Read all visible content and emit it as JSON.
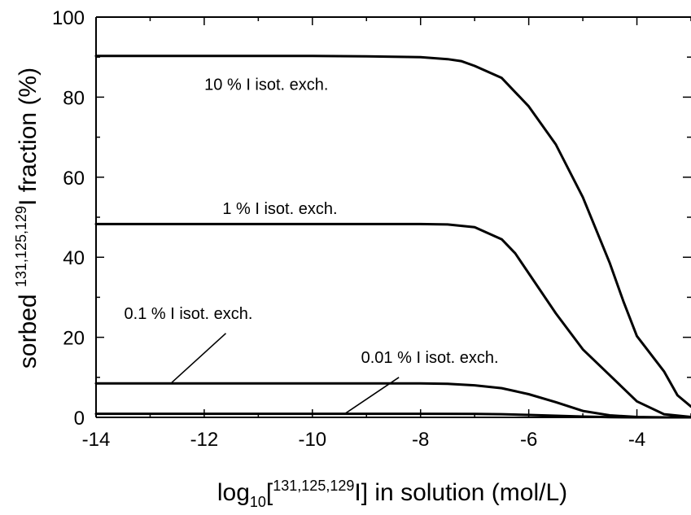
{
  "chart_data": {
    "type": "line",
    "xlabel_parts": {
      "main": "log",
      "sub": "10",
      "open": "[",
      "sup": "131,125,129",
      "rest": "I] in solution (mol/L)"
    },
    "ylabel_parts": {
      "pre": "sorbed ",
      "sup": "131,125,129",
      "rest": "I fraction (%)"
    },
    "xlim": [
      -14,
      -3
    ],
    "ylim": [
      0,
      100
    ],
    "x_ticks": [
      -14,
      -12,
      -10,
      -8,
      -6,
      -4
    ],
    "y_ticks": [
      0,
      20,
      40,
      60,
      80,
      100
    ],
    "grid": false,
    "series": [
      {
        "key": "s10",
        "label": "10 % I isot. exch.",
        "x": [
          -14,
          -12,
          -10,
          -9,
          -8.5,
          -8,
          -7.5,
          -7.25,
          -7,
          -6.5,
          -6,
          -5.5,
          -5,
          -4.5,
          -4.25,
          -4,
          -3.5,
          -3.25,
          -3
        ],
        "y": [
          90.3,
          90.3,
          90.3,
          90.2,
          90.1,
          90.0,
          89.5,
          89.0,
          87.8,
          84.8,
          77.7,
          68.2,
          55.0,
          38.5,
          29.0,
          20.3,
          11.5,
          5.5,
          2.7
        ]
      },
      {
        "key": "s1",
        "label": "1 % I isot. exch.",
        "x": [
          -14,
          -12,
          -10,
          -9,
          -8,
          -7.5,
          -7,
          -6.5,
          -6.25,
          -6,
          -5.5,
          -5,
          -4.5,
          -4,
          -3.5,
          -3
        ],
        "y": [
          48.3,
          48.3,
          48.3,
          48.3,
          48.3,
          48.2,
          47.5,
          44.5,
          41.0,
          36.0,
          26.0,
          17.0,
          10.5,
          4.0,
          0.8,
          0.1
        ]
      },
      {
        "key": "s01",
        "label": "0.1 % I isot. exch.",
        "x": [
          -14,
          -12,
          -10,
          -8,
          -7.5,
          -7,
          -6.5,
          -6,
          -5.5,
          -5,
          -4.5,
          -4,
          -3.5,
          -3
        ],
        "y": [
          8.5,
          8.5,
          8.5,
          8.5,
          8.4,
          8.0,
          7.3,
          5.8,
          3.8,
          1.6,
          0.5,
          0.1,
          0.0,
          0.0
        ]
      },
      {
        "key": "s001",
        "label": "0.01 % I isot. exch.",
        "x": [
          -14,
          -10,
          -8,
          -7,
          -6.5,
          -6,
          -5.5,
          -5,
          -4.5,
          -4,
          -3
        ],
        "y": [
          0.9,
          0.9,
          0.9,
          0.85,
          0.8,
          0.6,
          0.4,
          0.2,
          0.05,
          0.0,
          0.0
        ]
      }
    ],
    "annotations": [
      {
        "key": "a10",
        "text": "10 % I isot. exch.",
        "at_x": -10.85,
        "at_y": 81.8,
        "anchor": "middle"
      },
      {
        "key": "a1",
        "text": "1 % I isot. exch.",
        "at_x": -10.6,
        "at_y": 50.8,
        "anchor": "middle"
      },
      {
        "key": "a01",
        "text": "0.1 % I isot. exch.",
        "at_x": -13.48,
        "at_y": 24.6,
        "anchor": "start",
        "arrow_from": [
          -11.6,
          21.0
        ],
        "arrow_to": [
          -12.6,
          8.7
        ]
      },
      {
        "key": "a001",
        "text": "0.01 % I isot. exch.",
        "at_x": -9.1,
        "at_y": 13.6,
        "anchor": "start",
        "arrow_from": [
          -8.4,
          10.0
        ],
        "arrow_to": [
          -9.4,
          0.9
        ]
      }
    ]
  }
}
